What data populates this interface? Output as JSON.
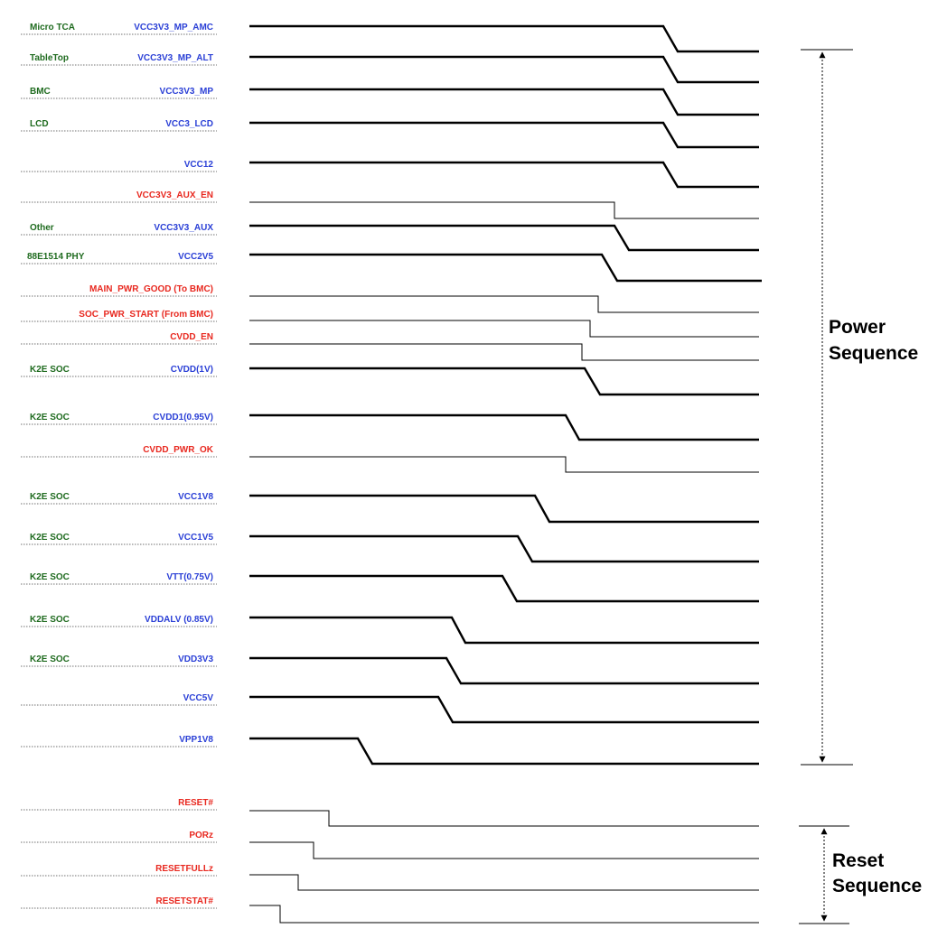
{
  "sections": {
    "power_line1": "Power",
    "power_line2": "Sequence",
    "reset_line1": "Reset",
    "reset_line2": "Sequence"
  },
  "colors": {
    "group_label": "#1f6b1f",
    "rail_label": "#2a3fd6",
    "control_label": "#e8281f",
    "trace": "#000000"
  },
  "signals": [
    {
      "group": "Micro TCA",
      "name": "VCC3V3_MP_AMC",
      "kind": "rail"
    },
    {
      "group": "TableTop",
      "name": "VCC3V3_MP_ALT",
      "kind": "rail"
    },
    {
      "group": "BMC",
      "name": "VCC3V3_MP",
      "kind": "rail"
    },
    {
      "group": "LCD",
      "name": "VCC3_LCD",
      "kind": "rail"
    },
    {
      "group": "",
      "name": "VCC12",
      "kind": "rail"
    },
    {
      "group": "",
      "name": "VCC3V3_AUX_EN",
      "kind": "control"
    },
    {
      "group": "Other",
      "name": "VCC3V3_AUX",
      "kind": "rail"
    },
    {
      "group": "88E1514 PHY",
      "name": "VCC2V5",
      "kind": "rail"
    },
    {
      "group": "",
      "name": "MAIN_PWR_GOOD (To BMC)",
      "kind": "control"
    },
    {
      "group": "",
      "name": "SOC_PWR_START (From BMC)",
      "kind": "control"
    },
    {
      "group": "",
      "name": "CVDD_EN",
      "kind": "control"
    },
    {
      "group": "K2E SOC",
      "name": "CVDD(1V)",
      "kind": "rail"
    },
    {
      "group": "K2E SOC",
      "name": "CVDD1(0.95V)",
      "kind": "rail"
    },
    {
      "group": "",
      "name": "CVDD_PWR_OK",
      "kind": "control"
    },
    {
      "group": "K2E SOC",
      "name": "VCC1V8",
      "kind": "rail"
    },
    {
      "group": "K2E SOC",
      "name": "VCC1V5",
      "kind": "rail"
    },
    {
      "group": "K2E SOC",
      "name": "VTT(0.75V)",
      "kind": "rail"
    },
    {
      "group": "K2E SOC",
      "name": "VDDALV (0.85V)",
      "kind": "rail"
    },
    {
      "group": "K2E SOC",
      "name": "VDD3V3",
      "kind": "rail"
    },
    {
      "group": "",
      "name": "VCC5V",
      "kind": "rail"
    },
    {
      "group": "",
      "name": "VPP1V8",
      "kind": "rail"
    },
    {
      "group": "",
      "name": "RESET#",
      "kind": "control"
    },
    {
      "group": "",
      "name": "PORz",
      "kind": "control"
    },
    {
      "group": "",
      "name": "RESETFULLz",
      "kind": "control"
    },
    {
      "group": "",
      "name": "RESETSTAT#",
      "kind": "control"
    }
  ]
}
